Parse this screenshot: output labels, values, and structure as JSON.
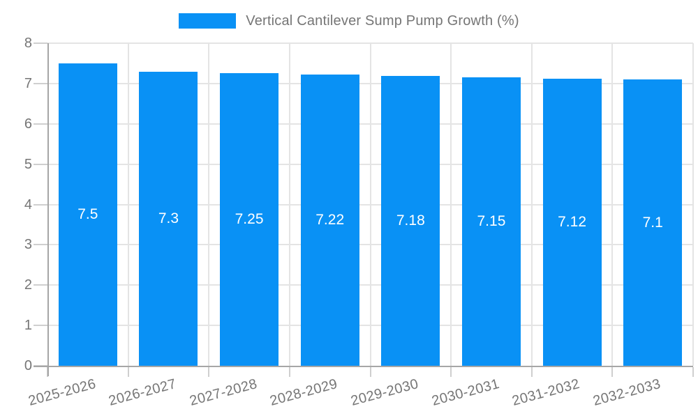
{
  "legend": {
    "label": "Vertical Cantilever Sump Pump Growth (%)"
  },
  "colors": {
    "bar": "#0991f5",
    "grid": "#e4e4e4",
    "tick": "#cfcfcf",
    "axis": "#a6a6a6",
    "tick_text": "#757575",
    "bar_label_text": "#ffffff",
    "background": "#ffffff"
  },
  "chart_data": {
    "type": "bar",
    "title": "Vertical Cantilever Sump Pump Growth (%)",
    "categories": [
      "2025-2026",
      "2026-2027",
      "2027-2028",
      "2028-2029",
      "2029-2030",
      "2030-2031",
      "2031-2032",
      "2032-2033"
    ],
    "values": [
      7.5,
      7.3,
      7.25,
      7.22,
      7.18,
      7.15,
      7.12,
      7.1
    ],
    "bar_labels": [
      "7.5",
      "7.3",
      "7.25",
      "7.22",
      "7.18",
      "7.15",
      "7.12",
      "7.1"
    ],
    "xlabel": "",
    "ylabel": "",
    "ylim": [
      0,
      8
    ],
    "yticks": [
      0,
      1,
      2,
      3,
      4,
      5,
      6,
      7,
      8
    ],
    "grid": true,
    "legend_position": "top",
    "bar_label_position": "center"
  }
}
